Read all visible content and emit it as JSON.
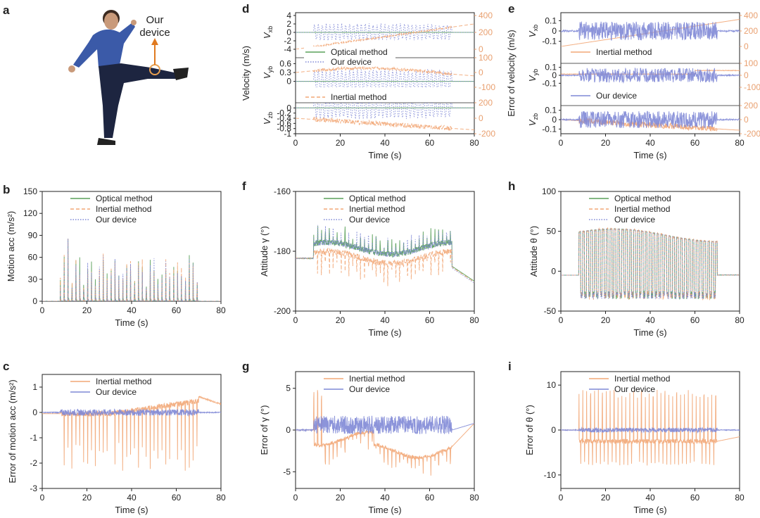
{
  "colors": {
    "optical": "#5aa05a",
    "inertial": "#f2a777",
    "device": "#7f88d6",
    "axis": "#222222",
    "rightaxis": "#e9a070"
  },
  "panel_a": {
    "label": "a",
    "annotation_line1": "Our",
    "annotation_line2": "device"
  },
  "chart_data": [
    {
      "id": "b",
      "label": "b",
      "type": "line",
      "xlabel": "Time (s)",
      "ylabel": "Motion acc (m/s²)",
      "xlim": [
        0,
        80
      ],
      "ylim": [
        0,
        150
      ],
      "xticks": [
        0,
        20,
        40,
        60,
        80
      ],
      "yticks": [
        0,
        30,
        60,
        90,
        120,
        150
      ],
      "legend_position": "top-center",
      "series": [
        {
          "name": "Optical method",
          "style": "solid",
          "color": "optical"
        },
        {
          "name": "Inertial method",
          "style": "dashed",
          "color": "inertial"
        },
        {
          "name": "Our device",
          "style": "dotted",
          "color": "device"
        }
      ],
      "activity": [
        8,
        70
      ],
      "baseline": 0,
      "peak_max": 104,
      "peak_typical": 50
    },
    {
      "id": "c",
      "label": "c",
      "type": "line",
      "xlabel": "Time (s)",
      "ylabel": "Error of motion acc (m/s²)",
      "xlim": [
        0,
        80
      ],
      "ylim": [
        -3,
        1.5
      ],
      "xticks": [
        0,
        20,
        40,
        60,
        80
      ],
      "yticks": [
        -3,
        -2,
        -1,
        0,
        1
      ],
      "legend_position": "top-center",
      "series": [
        {
          "name": "Inertial method",
          "style": "solid",
          "color": "inertial"
        },
        {
          "name": "Our device",
          "style": "solid",
          "color": "device"
        }
      ],
      "activity": [
        8,
        70
      ]
    },
    {
      "id": "d",
      "label": "d",
      "type": "line",
      "xlabel": "Time (s)",
      "ylabel": "Velocity (m/s)",
      "xlim": [
        0,
        80
      ],
      "xticks": [
        0,
        20,
        40,
        60,
        80
      ],
      "subplots": [
        {
          "name": "V_xb",
          "sub": "xb",
          "ylim": [
            -4,
            4
          ],
          "yticks": [
            -4,
            -2,
            0,
            2,
            4
          ],
          "rlim": [
            0,
            400
          ],
          "rticks": [
            0,
            200,
            400
          ]
        },
        {
          "name": "V_yb",
          "sub": "yb",
          "ylim": [
            -0.2,
            0.8
          ],
          "yticks": [
            0.0,
            0.3,
            0.6
          ],
          "rlim": [
            -100,
            100
          ],
          "rticks": [
            -100,
            0,
            100
          ]
        },
        {
          "name": "V_zb",
          "sub": "zb",
          "ylim": [
            -1.0,
            0.2
          ],
          "yticks": [
            -1.0,
            -0.8,
            -0.6,
            -0.4,
            -0.2,
            0.0
          ],
          "rlim": [
            -200,
            200
          ],
          "rticks": [
            -200,
            0,
            200
          ]
        }
      ],
      "legend": [
        {
          "name": "Optical method",
          "style": "solid",
          "color": "optical"
        },
        {
          "name": "Our device",
          "style": "dotted",
          "color": "device"
        },
        {
          "name": "Inertial method",
          "style": "dashed",
          "color": "inertial"
        }
      ],
      "activity": [
        8,
        70
      ]
    },
    {
      "id": "e",
      "label": "e",
      "type": "line",
      "xlabel": "Time (s)",
      "ylabel": "Error of velocity (m/s)",
      "xlim": [
        0,
        80
      ],
      "xticks": [
        0,
        20,
        40,
        60,
        80
      ],
      "subplots": [
        {
          "name": "V_xb",
          "sub": "xb",
          "ylim": [
            -0.15,
            0.15
          ],
          "yticks": [
            -0.1,
            0.0,
            0.1
          ],
          "rlim": [
            0,
            400
          ],
          "rticks": [
            0,
            200,
            400
          ]
        },
        {
          "name": "V_yb",
          "sub": "yb",
          "ylim": [
            -0.15,
            0.15
          ],
          "yticks": [
            -0.1,
            0.0,
            0.1
          ],
          "rlim": [
            -100,
            100
          ],
          "rticks": [
            -100,
            0,
            100
          ]
        },
        {
          "name": "V_zb",
          "sub": "zb",
          "ylim": [
            -0.15,
            0.15
          ],
          "yticks": [
            -0.1,
            0.0,
            0.1
          ],
          "rlim": [
            -200,
            200
          ],
          "rticks": [
            -200,
            0,
            200
          ]
        }
      ],
      "legend": [
        {
          "name": "Inertial method",
          "style": "solid",
          "color": "inertial"
        },
        {
          "name": "Our device",
          "style": "solid",
          "color": "device"
        }
      ],
      "activity": [
        8,
        70
      ]
    },
    {
      "id": "f",
      "label": "f",
      "type": "line",
      "xlabel": "Time (s)",
      "ylabel": "Attitude γ (°)",
      "xlim": [
        0,
        80
      ],
      "ylim": [
        -200,
        -160
      ],
      "xticks": [
        0,
        20,
        40,
        60,
        80
      ],
      "yticks": [
        -200,
        -180,
        -160
      ],
      "legend_position": "top-center",
      "series": [
        {
          "name": "Optical method",
          "style": "solid",
          "color": "optical"
        },
        {
          "name": "Inertial method",
          "style": "dashed",
          "color": "inertial"
        },
        {
          "name": "Our device",
          "style": "dotted",
          "color": "device"
        }
      ],
      "activity": [
        8,
        70
      ],
      "baseline": -182
    },
    {
      "id": "h",
      "label": "h",
      "type": "line",
      "xlabel": "Time (s)",
      "ylabel": "Attitude θ (°)",
      "xlim": [
        0,
        80
      ],
      "ylim": [
        -50,
        100
      ],
      "xticks": [
        0,
        20,
        40,
        60,
        80
      ],
      "yticks": [
        -50,
        0,
        50,
        100
      ],
      "legend_position": "top-center",
      "series": [
        {
          "name": "Optical method",
          "style": "solid",
          "color": "optical"
        },
        {
          "name": "Inertial method",
          "style": "dashed",
          "color": "inertial"
        },
        {
          "name": "Our device",
          "style": "dotted",
          "color": "device"
        }
      ],
      "activity": [
        8,
        70
      ],
      "baseline": -5
    },
    {
      "id": "g",
      "label": "g",
      "type": "line",
      "xlabel": "Time (s)",
      "ylabel": "Error of γ (°)",
      "xlim": [
        0,
        80
      ],
      "ylim": [
        -7,
        7
      ],
      "xticks": [
        0,
        20,
        40,
        60,
        80
      ],
      "yticks": [
        -5,
        0,
        5
      ],
      "legend_position": "top-center",
      "series": [
        {
          "name": "Inertial method",
          "style": "solid",
          "color": "inertial"
        },
        {
          "name": "Our device",
          "style": "solid",
          "color": "device"
        }
      ],
      "activity": [
        8,
        70
      ]
    },
    {
      "id": "i",
      "label": "i",
      "type": "line",
      "xlabel": "Time (s)",
      "ylabel": "Error of θ (°)",
      "xlim": [
        0,
        80
      ],
      "ylim": [
        -13,
        13
      ],
      "xticks": [
        0,
        20,
        40,
        60,
        80
      ],
      "yticks": [
        -10,
        0,
        10
      ],
      "legend_position": "top-center",
      "series": [
        {
          "name": "Inertial method",
          "style": "solid",
          "color": "inertial"
        },
        {
          "name": "Our device",
          "style": "solid",
          "color": "device"
        }
      ],
      "activity": [
        8,
        70
      ]
    }
  ]
}
